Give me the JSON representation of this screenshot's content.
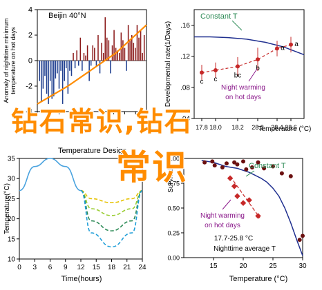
{
  "watermark": {
    "line1": "钻石常识,钻石",
    "line2": "常识",
    "color": "#ff8c00"
  },
  "chart_data": [
    {
      "id": "anomaly",
      "type": "bar",
      "title": "Beijin 40°N",
      "ylabel": "Anomaly of nighttime minimum temperature on hot days",
      "xlabel": "",
      "ylim": [
        -4,
        4
      ],
      "yticks": [
        "4",
        "2",
        "0",
        "-2",
        "-4"
      ],
      "xticks": [],
      "colors": {
        "positive": "#8b1a1a",
        "negative": "#1f3f8f",
        "trend": "#ff8c00"
      },
      "series": [
        {
          "values": [
            -1.6,
            -3.2,
            -2.2,
            -1.2,
            -2.6,
            -3.4,
            -1.6,
            -3.0,
            -2.8,
            -1.4,
            -1.0,
            -2.2,
            -0.8,
            -3.4,
            -1.6,
            -0.6,
            -2.6,
            -0.8,
            -1.2,
            0.6,
            -0.6,
            0.8,
            -0.4,
            1.8,
            -0.8,
            0.6,
            0.4,
            1.2,
            -1.6,
            -0.4,
            1.2,
            1.0,
            -0.4,
            2.0,
            -1.0,
            1.4,
            0.6,
            3.4,
            1.8,
            1.6,
            -1.0,
            1.2,
            2.4,
            1.0,
            0.8,
            0.6,
            2.2,
            1.6,
            1.0,
            -0.8,
            2.8,
            1.6,
            2.0,
            1.4,
            1.0,
            2.8,
            1.8,
            2.4,
            0.6,
            2.0
          ]
        },
        {
          "name": "trend",
          "x": [
            0,
            0.28,
            0.55,
            0.72,
            1.0
          ],
          "values": [
            -3.4,
            -2.0,
            -0.4,
            0.6,
            2.8
          ]
        }
      ]
    },
    {
      "id": "devrate",
      "type": "line",
      "title": "",
      "xlabel": "Temperature (°C)",
      "ylabel": "Developmental rate(1/Days)",
      "xlim": [
        17.3,
        29.2
      ],
      "ylim": [
        0.04,
        0.18
      ],
      "xticks": [
        "17.8",
        "18.0",
        "18.2",
        "28.2",
        "28.4",
        "28.6"
      ],
      "yticks": [
        ".16",
        ".12",
        ".08",
        ".04"
      ],
      "colors": {
        "curve": "#1f2f8f",
        "points": "#c62828",
        "label": "#2e8b57",
        "night": "#8b1a8b"
      },
      "series": [
        {
          "name": "Constant T",
          "x": [
            17.3,
            19.0,
            21.0,
            23.0,
            25.0,
            27.0,
            29.2
          ],
          "values": [
            0.145,
            0.145,
            0.144,
            0.142,
            0.138,
            0.132,
            0.122
          ]
        },
        {
          "name": "Night warming on hot days",
          "x": [
            17.8,
            18.0,
            18.2,
            28.2,
            28.4,
            28.6
          ],
          "values": [
            0.099,
            0.102,
            0.107,
            0.116,
            0.13,
            0.135
          ],
          "labels": [
            "c",
            "c",
            "bc",
            "b",
            "a",
            "a"
          ],
          "err": [
            0.01,
            0.01,
            0.012,
            0.015,
            0.01,
            0.01
          ]
        }
      ],
      "annotations": [
        "Constant T",
        "Night warming",
        "on hot days"
      ]
    },
    {
      "id": "design",
      "type": "line",
      "title": "Temperature Design",
      "xlabel": "Time(hours)",
      "ylabel": "Temperature(°C)",
      "xlim": [
        0,
        24
      ],
      "ylim": [
        10,
        35
      ],
      "xticks": [
        "0",
        "3",
        "6",
        "9",
        "12",
        "15",
        "18",
        "21",
        "24"
      ],
      "yticks": [
        "35",
        "30",
        "25",
        "20",
        "15",
        "10"
      ],
      "colors": {
        "day": "#4aa3df",
        "night": [
          "#e6c200",
          "#9acd32",
          "#2e8b57",
          "#1f9ed8"
        ]
      },
      "series": [
        {
          "name": "day",
          "x": [
            0,
            3,
            6,
            9,
            12
          ],
          "values": [
            27,
            33,
            35,
            33,
            27
          ]
        },
        {
          "name": "night1",
          "x": [
            12,
            14,
            18,
            22,
            24
          ],
          "values": [
            27,
            25.0,
            24.0,
            25.0,
            27
          ]
        },
        {
          "name": "night2",
          "x": [
            12,
            14,
            18,
            22,
            24
          ],
          "values": [
            27,
            22.5,
            20.8,
            22.5,
            27
          ]
        },
        {
          "name": "night3",
          "x": [
            12,
            14,
            18,
            22,
            24
          ],
          "values": [
            27,
            19.5,
            17.0,
            19.5,
            27
          ]
        },
        {
          "name": "night4",
          "x": [
            12,
            14,
            18,
            22,
            24
          ],
          "values": [
            27,
            16.5,
            13.0,
            16.5,
            27
          ]
        }
      ]
    },
    {
      "id": "survival",
      "type": "scatter",
      "title": "",
      "xlabel": "Temperature (°C)",
      "ylabel": "Survival",
      "xlim": [
        10,
        30
      ],
      "ylim": [
        0,
        1
      ],
      "xticks": [
        "15",
        "20",
        "25",
        "30"
      ],
      "yticks": [
        "1.00",
        "0.75",
        "0.50",
        "0.25",
        "0.00"
      ],
      "colors": {
        "curve": "#1f2f8f",
        "constant": "#6b1010",
        "night": "#c62828",
        "label": "#2e8b57",
        "night_label": "#8b1a8b"
      },
      "series": [
        {
          "name": "Constant T",
          "x": [
            13,
            14,
            15,
            16,
            17,
            18,
            19,
            20,
            21,
            22,
            23,
            24,
            25,
            26,
            27,
            28,
            29,
            30
          ],
          "values": [
            0.98,
            0.97,
            0.96,
            0.94,
            0.92,
            0.91,
            0.9,
            0.88,
            0.86,
            0.83,
            0.8,
            0.76,
            0.7,
            0.62,
            0.5,
            0.35,
            0.18,
            0.02
          ]
        },
        {
          "name": "Constant T points",
          "x": [
            13.5,
            14.8,
            15.2,
            16.5,
            17.2,
            18.5,
            19.0,
            20.0,
            20.5,
            21.5,
            22.5,
            23.5,
            25.0,
            26.5,
            28.0,
            29.5,
            30.0
          ],
          "values": [
            0.96,
            0.97,
            0.93,
            0.91,
            0.95,
            0.96,
            0.94,
            0.97,
            0.89,
            0.91,
            0.96,
            0.9,
            0.92,
            0.85,
            0.82,
            0.18,
            0.22
          ]
        },
        {
          "name": "Night warming on hot days",
          "x": [
            17.8,
            18.5,
            19.0,
            20.0,
            21.0,
            22.5
          ],
          "values": [
            0.8,
            0.72,
            0.62,
            0.55,
            0.58,
            0.42
          ]
        },
        {
          "name": "17.7-25.8 °C trend",
          "x": [
            17.8,
            22.8
          ],
          "values": [
            0.82,
            0.4
          ]
        }
      ],
      "annotations": [
        "Constant T",
        "Night warming",
        "on hot days",
        "17.7-25.8 °C",
        "Nighttime average T"
      ]
    }
  ]
}
